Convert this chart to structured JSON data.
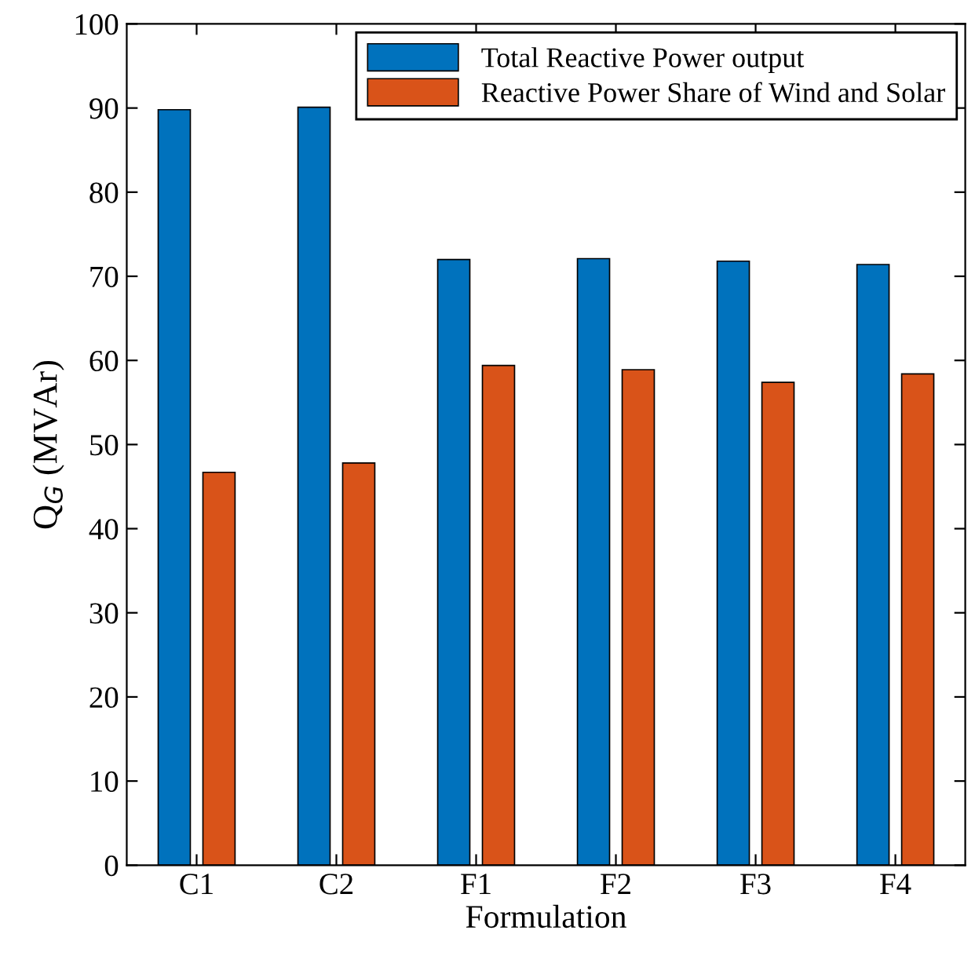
{
  "chart_data": {
    "type": "bar",
    "xlabel": "Formulation",
    "ylabel": "Q$_{G}$ (MVAr)",
    "categories": [
      "C1",
      "C2",
      "F1",
      "F2",
      "F3",
      "F4"
    ],
    "series": [
      {
        "name": "Total Reactive Power output",
        "color": "#0072bd",
        "values": [
          89.8,
          90.1,
          72.0,
          72.1,
          71.8,
          71.4
        ]
      },
      {
        "name": "Reactive Power Share of Wind and Solar",
        "color": "#d95319",
        "values": [
          46.7,
          47.8,
          59.4,
          58.9,
          57.4,
          58.4
        ]
      }
    ],
    "ylim": [
      0,
      100
    ],
    "yticks": [
      0,
      10,
      20,
      30,
      40,
      50,
      60,
      70,
      80,
      90,
      100
    ],
    "grid": false,
    "legend": "top right"
  }
}
